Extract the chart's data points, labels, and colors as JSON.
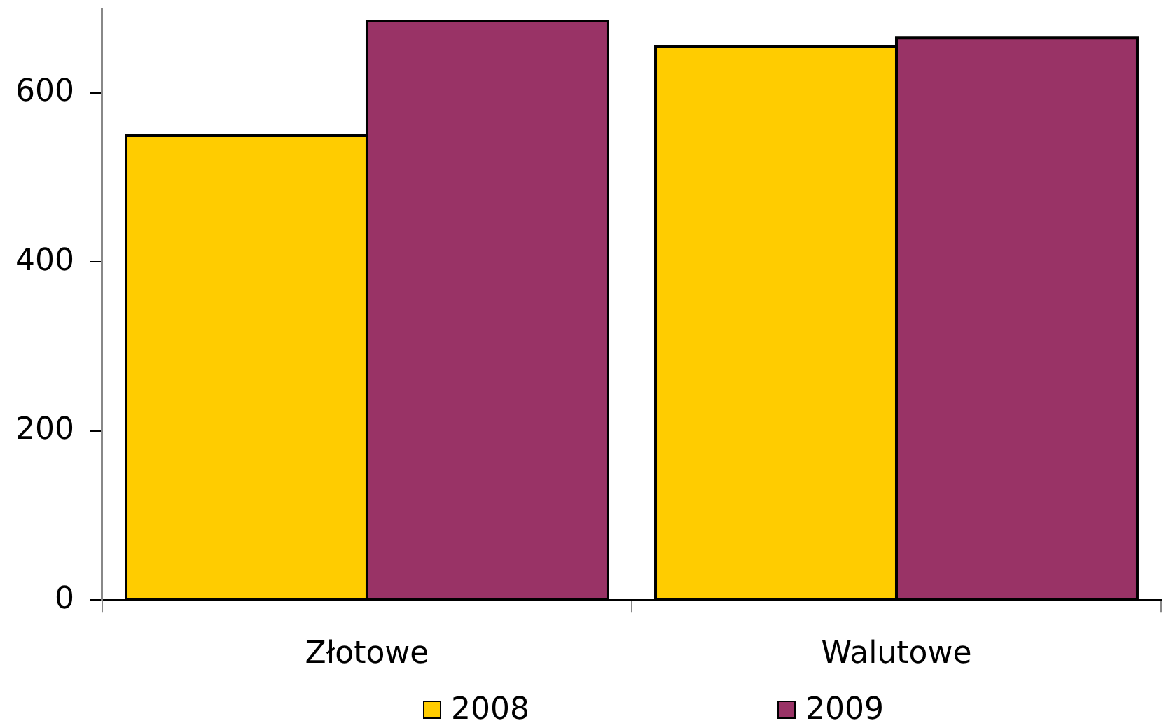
{
  "chart_data": {
    "type": "bar",
    "categories": [
      "Złotowe",
      "Walutowe"
    ],
    "series": [
      {
        "name": "2008",
        "color": "#ffcc00",
        "values": [
          550,
          655
        ]
      },
      {
        "name": "2009",
        "color": "#993366",
        "values": [
          685,
          665
        ]
      }
    ],
    "ylim": [
      0,
      700
    ],
    "yticks": [
      0,
      200,
      400,
      600
    ],
    "grid": false,
    "legend": "bottom"
  }
}
